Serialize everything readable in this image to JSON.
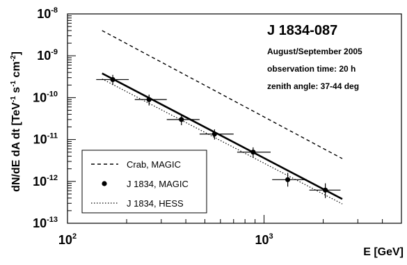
{
  "chart_data": {
    "type": "line",
    "title": "J 1834-087",
    "annotations": [
      "August/September 2005",
      "observation time: 20 h",
      "zenith angle: 37-44 deg"
    ],
    "xlabel": "E [GeV]",
    "ylabel_main": "dN/dE dA dt [TeV",
    "ylabel_units": [
      "-1",
      " s",
      "-1",
      " cm",
      "-2",
      "]"
    ],
    "xlim": [
      100,
      5000
    ],
    "ylim": [
      1e-13,
      1e-08
    ],
    "x_scale": "log",
    "y_scale": "log",
    "x_ticks": [
      {
        "value": 100,
        "base": "10",
        "exp": "2"
      },
      {
        "value": 1000,
        "base": "10",
        "exp": "3"
      }
    ],
    "y_ticks": [
      {
        "value": 1e-08,
        "base": "10",
        "exp": "-8"
      },
      {
        "value": 1e-09,
        "base": "10",
        "exp": "-9"
      },
      {
        "value": 1e-10,
        "base": "10",
        "exp": "-10"
      },
      {
        "value": 1e-11,
        "base": "10",
        "exp": "-11"
      },
      {
        "value": 1e-12,
        "base": "10",
        "exp": "-12"
      },
      {
        "value": 1e-13,
        "base": "10",
        "exp": "-13"
      }
    ],
    "grid": "on",
    "legend_position": "bottom-left",
    "legend": [
      {
        "label": "Crab, MAGIC",
        "style": "dashed"
      },
      {
        "label": "J 1834, MAGIC",
        "style": "points"
      },
      {
        "label": "J 1834, HESS",
        "style": "dotted"
      }
    ],
    "series": [
      {
        "name": "Crab, MAGIC",
        "kind": "dashed-line",
        "x": [
          150,
          2500
        ],
        "y": [
          4e-09,
          3.5e-12
        ]
      },
      {
        "name": "J 1834, MAGIC",
        "kind": "points-with-errors",
        "x": [
          170,
          260,
          380,
          560,
          880,
          1320,
          2050
        ],
        "y": [
          2.7e-10,
          9e-11,
          3e-11,
          1.35e-11,
          5e-12,
          1.1e-12,
          6.2e-13
        ],
        "x_err_low": [
          140,
          220,
          320,
          470,
          730,
          1100,
          1700
        ],
        "x_err_high": [
          205,
          320,
          470,
          700,
          1080,
          1650,
          2450
        ],
        "y_err_low": [
          2e-10,
          6.5e-11,
          2.2e-11,
          1e-11,
          3.7e-12,
          7.5e-13,
          4e-13
        ],
        "y_err_high": [
          3.5e-10,
          1.18e-10,
          3.9e-11,
          1.75e-11,
          6.5e-12,
          1.6e-12,
          9e-13
        ]
      },
      {
        "name": "J 1834 MAGIC fit",
        "kind": "solid-line",
        "x": [
          150,
          2500
        ],
        "y": [
          3.8e-10,
          3.8e-13
        ]
      },
      {
        "name": "J 1834, HESS",
        "kind": "dotted-line",
        "x": [
          150,
          2500
        ],
        "y": [
          2.8e-10,
          2.9e-13
        ]
      }
    ]
  }
}
